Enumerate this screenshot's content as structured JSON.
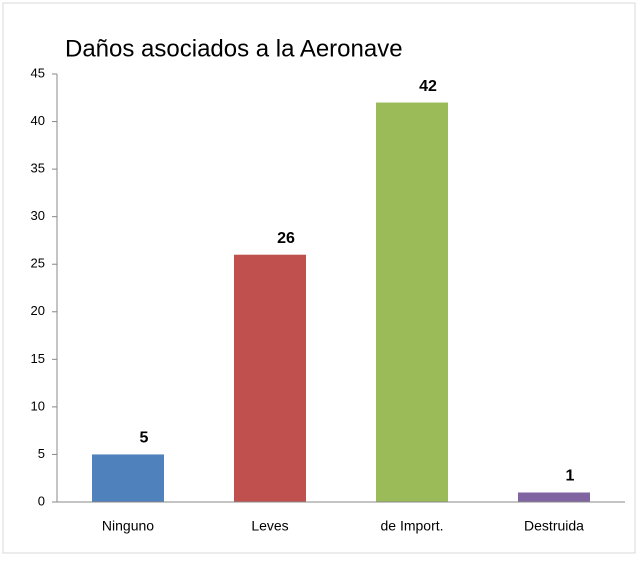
{
  "chart_data": {
    "type": "bar",
    "title": "Daños asociados a la Aeronave",
    "categories": [
      "Ninguno",
      "Leves",
      "de Import.",
      "Destruida"
    ],
    "values": [
      5,
      26,
      42,
      1
    ],
    "colors": [
      "#4f81bd",
      "#c0504d",
      "#9bbb59",
      "#8064a2"
    ],
    "ylim": [
      0,
      45
    ],
    "yticks": [
      0,
      5,
      10,
      15,
      20,
      25,
      30,
      35,
      40,
      45
    ]
  }
}
